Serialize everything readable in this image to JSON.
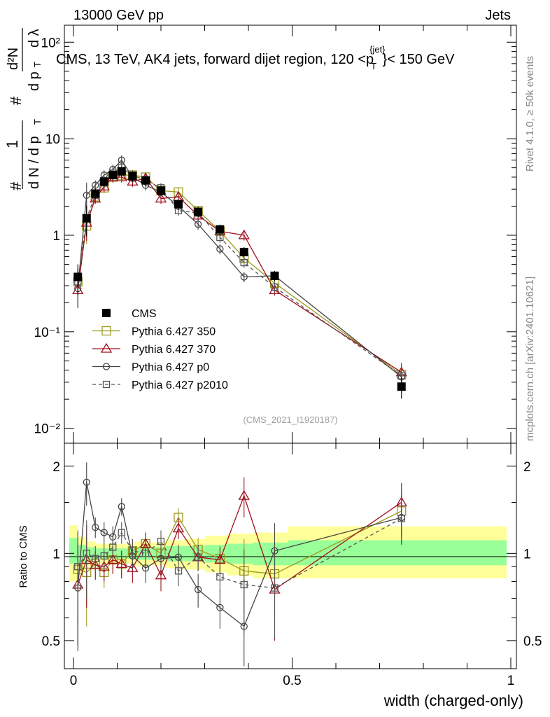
{
  "header": {
    "left": "13000 GeV pp",
    "right": "Jets"
  },
  "side_labels": {
    "rivet": "Rivet 4.1.0, ≥ 50k events",
    "mcplots": "mcplots.cern.ch [arXiv:2401.10621]"
  },
  "chart_data": [
    {
      "type": "scatter",
      "panel": "main",
      "title": "CMS, 13 TeV, AK4 jets, forward dijet region, 120 <p",
      "title_sup": "{jet}",
      "title_sub": "T",
      "title_end": "}< 150 GeV",
      "analysis_id": "(CMS_2021_I1920187)",
      "ylabel_parts": {
        "hash": "#",
        "one": "1",
        "frac1_den": "d N / d p",
        "sub_T": "T",
        "hash2": "#",
        "d2N": "d²N",
        "dpT": "d p",
        "dlambda": "d λ"
      },
      "yscale": "log",
      "ylim": [
        0.007,
        150
      ],
      "xlim": [
        -0.02,
        1.0
      ],
      "y_ticks": [
        {
          "value": 100,
          "label": "10²"
        },
        {
          "value": 10,
          "label": "10"
        },
        {
          "value": 1,
          "label": "1"
        },
        {
          "value": 0.1,
          "label": "10⁻¹"
        },
        {
          "value": 0.01,
          "label": "10⁻²"
        }
      ],
      "x": [
        0.01,
        0.03,
        0.05,
        0.07,
        0.09,
        0.11,
        0.135,
        0.165,
        0.2,
        0.24,
        0.285,
        0.335,
        0.39,
        0.46,
        0.75
      ],
      "series": [
        {
          "name": "CMS",
          "color": "#000000",
          "marker": "filled-square",
          "values": [
            0.37,
            1.5,
            2.7,
            3.6,
            4.2,
            4.6,
            4.1,
            3.7,
            2.9,
            2.1,
            1.75,
            1.15,
            0.67,
            0.38,
            0.027
          ]
        },
        {
          "name": "Pythia 6.427 350",
          "color": "#9a9a1e",
          "marker": "open-square",
          "values": [
            0.33,
            1.25,
            2.5,
            3.1,
            4.0,
            4.2,
            4.2,
            4.0,
            2.9,
            2.8,
            1.8,
            1.1,
            0.58,
            0.32,
            0.036
          ]
        },
        {
          "name": "Pythia 6.427 370",
          "color": "#a01020",
          "marker": "open-triangle",
          "values": [
            0.27,
            1.35,
            2.4,
            3.2,
            4.0,
            4.0,
            3.6,
            3.9,
            2.4,
            2.5,
            1.6,
            1.1,
            1.0,
            0.27,
            0.038
          ]
        },
        {
          "name": "Pythia 6.427 p0",
          "color": "#444444",
          "marker": "open-circle",
          "values": [
            0.28,
            2.6,
            3.3,
            4.2,
            4.8,
            6.0,
            4.0,
            3.3,
            2.8,
            2.0,
            1.3,
            0.72,
            0.37,
            0.38,
            0.034
          ]
        },
        {
          "name": "Pythia 6.427 p2010",
          "color": "#555555",
          "marker": "open-square-dashed",
          "values": [
            0.33,
            1.5,
            2.6,
            3.5,
            4.4,
            5.0,
            4.2,
            3.7,
            3.1,
            1.8,
            1.7,
            0.95,
            0.52,
            0.29,
            0.035
          ]
        }
      ]
    },
    {
      "type": "scatter",
      "panel": "ratio",
      "ylabel": "Ratio to CMS",
      "xlabel": "width (charged-only)",
      "ylim": [
        0.4,
        2.4
      ],
      "xlim": [
        -0.02,
        1.0
      ],
      "y_ticks": [
        {
          "value": 2,
          "label": "2"
        },
        {
          "value": 1,
          "label": "1"
        },
        {
          "value": 0.5,
          "label": "0.5"
        }
      ],
      "x_ticks": [
        {
          "value": 0,
          "label": "0"
        },
        {
          "value": 0.5,
          "label": "0.5"
        },
        {
          "value": 1,
          "label": "1"
        }
      ],
      "bands": [
        {
          "x0": 0.0,
          "x1": 0.02,
          "inner": [
            0.92,
            1.13
          ],
          "outer": [
            0.8,
            1.25
          ]
        },
        {
          "x0": 0.02,
          "x1": 0.04,
          "inner": [
            0.93,
            1.07
          ],
          "outer": [
            0.86,
            1.14
          ]
        },
        {
          "x0": 0.04,
          "x1": 0.06,
          "inner": [
            0.95,
            1.05
          ],
          "outer": [
            0.9,
            1.1
          ]
        },
        {
          "x0": 0.06,
          "x1": 0.08,
          "inner": [
            0.96,
            1.04
          ],
          "outer": [
            0.92,
            1.08
          ]
        },
        {
          "x0": 0.08,
          "x1": 0.1,
          "inner": [
            0.96,
            1.04
          ],
          "outer": [
            0.92,
            1.08
          ]
        },
        {
          "x0": 0.1,
          "x1": 0.12,
          "inner": [
            0.96,
            1.04
          ],
          "outer": [
            0.92,
            1.08
          ]
        },
        {
          "x0": 0.12,
          "x1": 0.15,
          "inner": [
            0.96,
            1.04
          ],
          "outer": [
            0.92,
            1.08
          ]
        },
        {
          "x0": 0.15,
          "x1": 0.18,
          "inner": [
            0.95,
            1.05
          ],
          "outer": [
            0.9,
            1.1
          ]
        },
        {
          "x0": 0.18,
          "x1": 0.22,
          "inner": [
            0.95,
            1.05
          ],
          "outer": [
            0.91,
            1.09
          ]
        },
        {
          "x0": 0.22,
          "x1": 0.26,
          "inner": [
            0.94,
            1.06
          ],
          "outer": [
            0.89,
            1.11
          ]
        },
        {
          "x0": 0.26,
          "x1": 0.31,
          "inner": [
            0.94,
            1.06
          ],
          "outer": [
            0.88,
            1.12
          ]
        },
        {
          "x0": 0.31,
          "x1": 0.36,
          "inner": [
            0.93,
            1.07
          ],
          "outer": [
            0.86,
            1.15
          ]
        },
        {
          "x0": 0.36,
          "x1": 0.42,
          "inner": [
            0.92,
            1.08
          ],
          "outer": [
            0.84,
            1.17
          ]
        },
        {
          "x0": 0.42,
          "x1": 0.5,
          "inner": [
            0.91,
            1.09
          ],
          "outer": [
            0.82,
            1.18
          ]
        },
        {
          "x0": 0.5,
          "x1": 1.0,
          "inner": [
            0.91,
            1.11
          ],
          "outer": [
            0.82,
            1.24
          ]
        }
      ],
      "series": [
        {
          "name": "Pythia 6.427 350",
          "values": [
            0.88,
            0.86,
            0.92,
            0.86,
            0.95,
            0.92,
            1.02,
            1.08,
            1.0,
            1.33,
            1.03,
            0.96,
            0.87,
            0.85,
            1.4
          ]
        },
        {
          "name": "Pythia 6.427 370",
          "values": [
            0.78,
            0.95,
            0.91,
            0.9,
            0.95,
            0.92,
            0.89,
            1.08,
            0.84,
            1.22,
            0.97,
            0.95,
            1.58,
            0.75,
            1.5
          ]
        },
        {
          "name": "Pythia 6.427 p0",
          "values": [
            0.76,
            1.76,
            1.23,
            1.18,
            1.14,
            1.45,
            0.98,
            0.89,
            0.96,
            0.97,
            0.75,
            0.65,
            0.56,
            1.02,
            1.33
          ]
        },
        {
          "name": "Pythia 6.427 p2010",
          "values": [
            0.9,
            1.0,
            0.96,
            0.98,
            1.05,
            1.18,
            1.02,
            1.0,
            1.1,
            0.87,
            0.97,
            0.83,
            0.78,
            0.76,
            1.32
          ]
        }
      ]
    }
  ]
}
